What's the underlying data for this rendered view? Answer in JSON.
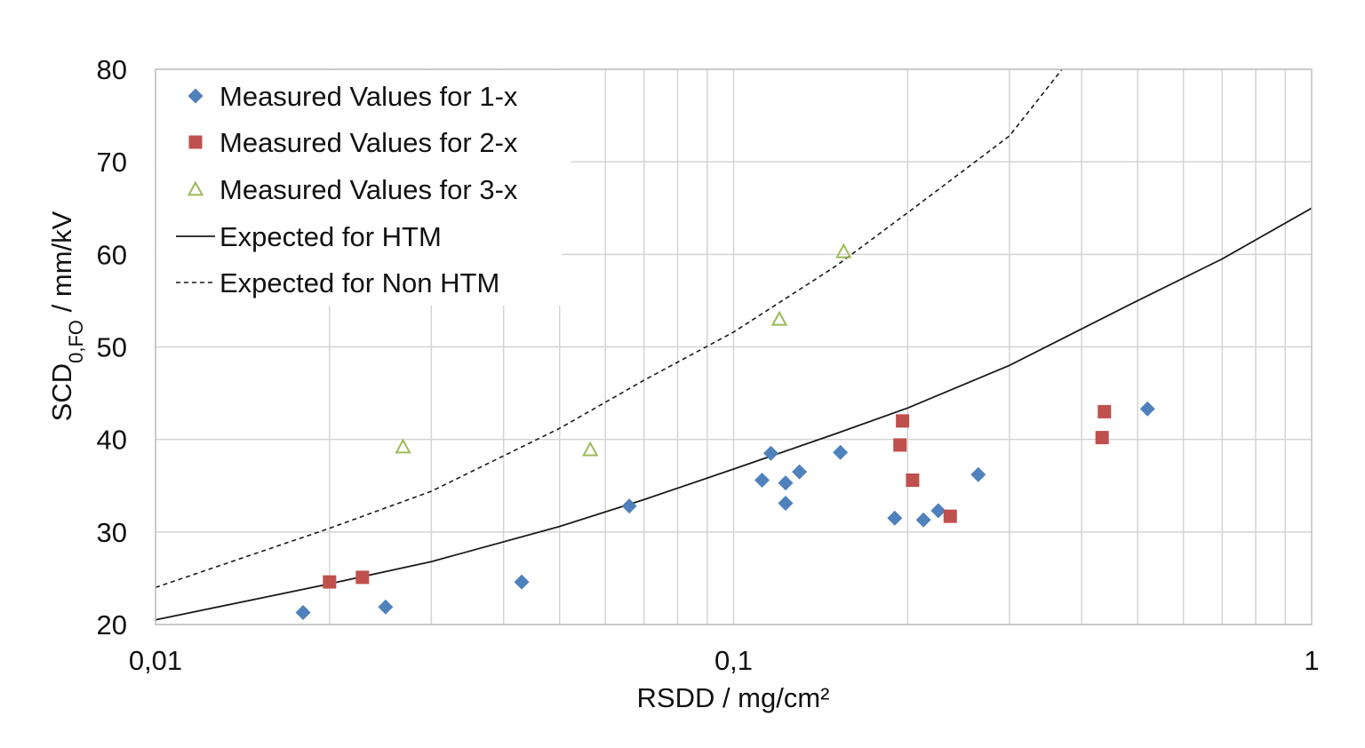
{
  "chart_data": {
    "type": "scatter",
    "xscale": "log",
    "xlim": [
      0.01,
      1
    ],
    "ylim": [
      20,
      80
    ],
    "grid": true,
    "xlabel": "RSDD / mg/cm²",
    "ylabel": {
      "main": "SCD",
      "sub": "0,FO",
      "unit": " / mm/kV"
    },
    "x_ticks": [
      {
        "value": 0.01,
        "label": "0,01"
      },
      {
        "value": 0.1,
        "label": "0,1"
      },
      {
        "value": 1,
        "label": "1"
      }
    ],
    "y_ticks": [
      {
        "value": 20,
        "label": "20"
      },
      {
        "value": 30,
        "label": "30"
      },
      {
        "value": 40,
        "label": "40"
      },
      {
        "value": 50,
        "label": "50"
      },
      {
        "value": 60,
        "label": "60"
      },
      {
        "value": 70,
        "label": "70"
      },
      {
        "value": 80,
        "label": "80"
      }
    ],
    "legend_position": "top-left",
    "series": [
      {
        "name": "Measured Values for 1-x",
        "kind": "scatter",
        "marker": "diamond",
        "color": "#4f81bd",
        "points": [
          [
            0.018,
            21.3
          ],
          [
            0.025,
            21.9
          ],
          [
            0.043,
            24.6
          ],
          [
            0.066,
            32.8
          ],
          [
            0.112,
            35.6
          ],
          [
            0.116,
            38.5
          ],
          [
            0.123,
            35.3
          ],
          [
            0.123,
            33.1
          ],
          [
            0.13,
            36.5
          ],
          [
            0.153,
            38.6
          ],
          [
            0.19,
            31.5
          ],
          [
            0.213,
            31.3
          ],
          [
            0.226,
            32.3
          ],
          [
            0.265,
            36.2
          ],
          [
            0.52,
            43.3
          ]
        ]
      },
      {
        "name": "Measured Values for 2-x",
        "kind": "scatter",
        "marker": "square",
        "color": "#c0504d",
        "points": [
          [
            0.02,
            24.6
          ],
          [
            0.0228,
            25.1
          ],
          [
            0.196,
            42.0
          ],
          [
            0.194,
            39.4
          ],
          [
            0.204,
            35.6
          ],
          [
            0.237,
            31.7
          ],
          [
            0.438,
            43.0
          ],
          [
            0.434,
            40.2
          ]
        ]
      },
      {
        "name": "Measured Values for 3-x",
        "kind": "scatter",
        "marker": "triangle-open",
        "color": "#9bbb59",
        "points": [
          [
            0.0268,
            39.2
          ],
          [
            0.0565,
            38.9
          ],
          [
            0.12,
            53.0
          ],
          [
            0.155,
            60.3
          ]
        ]
      },
      {
        "name": "Expected for HTM",
        "kind": "line",
        "dash": "solid",
        "color": "#1a1a1a",
        "points": [
          [
            0.01,
            20.5
          ],
          [
            0.02,
            24.4
          ],
          [
            0.03,
            26.8
          ],
          [
            0.05,
            30.6
          ],
          [
            0.07,
            33.5
          ],
          [
            0.1,
            36.8
          ],
          [
            0.15,
            40.6
          ],
          [
            0.2,
            43.4
          ],
          [
            0.3,
            48.0
          ],
          [
            0.5,
            55.0
          ],
          [
            0.7,
            59.5
          ],
          [
            1,
            65.0
          ]
        ]
      },
      {
        "name": "Expected for Non HTM",
        "kind": "line",
        "dash": "dashed",
        "color": "#1a1a1a",
        "points": [
          [
            0.01,
            24.0
          ],
          [
            0.02,
            30.4
          ],
          [
            0.03,
            34.4
          ],
          [
            0.05,
            41.2
          ],
          [
            0.07,
            46.4
          ],
          [
            0.1,
            51.6
          ],
          [
            0.15,
            58.7
          ],
          [
            0.2,
            64.5
          ],
          [
            0.3,
            72.8
          ],
          [
            0.37,
            80.0
          ]
        ]
      }
    ]
  }
}
